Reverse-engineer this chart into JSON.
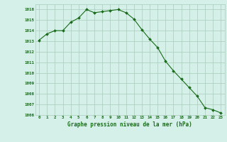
{
  "x": [
    0,
    1,
    2,
    3,
    4,
    5,
    6,
    7,
    8,
    9,
    10,
    11,
    12,
    13,
    14,
    15,
    16,
    17,
    18,
    19,
    20,
    21,
    22,
    23
  ],
  "y": [
    1013.1,
    1013.7,
    1014.0,
    1014.0,
    1014.8,
    1015.2,
    1016.0,
    1015.7,
    1015.8,
    1015.9,
    1016.0,
    1015.7,
    1015.1,
    1014.1,
    1013.2,
    1012.4,
    1011.1,
    1010.2,
    1009.4,
    1008.6,
    1007.8,
    1006.7,
    1006.5,
    1006.2
  ],
  "xlabel": "Graphe pression niveau de la mer (hPa)",
  "ylim": [
    1006,
    1016.5
  ],
  "xlim": [
    -0.5,
    23.5
  ],
  "yticks": [
    1006,
    1007,
    1008,
    1009,
    1010,
    1011,
    1012,
    1013,
    1014,
    1015,
    1016
  ],
  "xticks": [
    0,
    1,
    2,
    3,
    4,
    5,
    6,
    7,
    8,
    9,
    10,
    11,
    12,
    13,
    14,
    15,
    16,
    17,
    18,
    19,
    20,
    21,
    22,
    23
  ],
  "line_color": "#1a6b1a",
  "marker_color": "#1a6b1a",
  "bg_color": "#d4f0e8",
  "grid_color": "#aaccbb",
  "text_color": "#1a6b1a"
}
